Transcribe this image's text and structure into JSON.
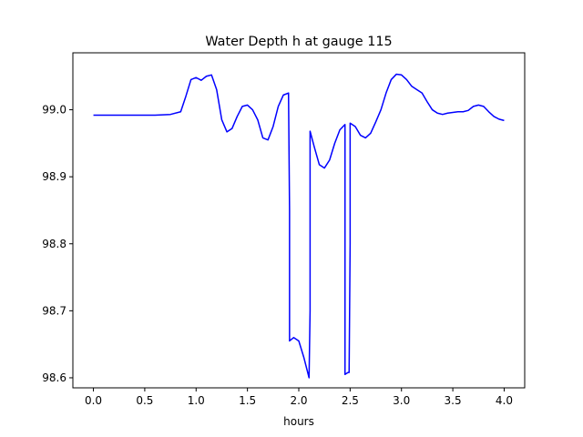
{
  "chart_data": {
    "type": "line",
    "title": "Water Depth h at gauge 115",
    "xlabel": "hours",
    "ylabel": "",
    "xlim": [
      -0.2,
      4.2
    ],
    "ylim": [
      98.585,
      99.085
    ],
    "grid": false,
    "x_ticks": [
      0.0,
      0.5,
      1.0,
      1.5,
      2.0,
      2.5,
      3.0,
      3.5,
      4.0
    ],
    "x_tick_labels": [
      "0.0",
      "0.5",
      "1.0",
      "1.5",
      "2.0",
      "2.5",
      "3.0",
      "3.5",
      "4.0"
    ],
    "y_ticks": [
      98.6,
      98.7,
      98.8,
      98.9,
      99.0
    ],
    "y_tick_labels": [
      "98.6",
      "98.7",
      "98.8",
      "98.9",
      "99.0"
    ],
    "colors": {
      "line": "#0000ff",
      "axes": "#000000",
      "background": "#ffffff"
    },
    "series": [
      {
        "x": [
          0.0,
          0.3,
          0.6,
          0.75,
          0.85,
          0.9,
          0.95,
          1.0,
          1.05,
          1.1,
          1.15,
          1.2,
          1.25,
          1.3,
          1.35,
          1.4,
          1.45,
          1.5,
          1.55,
          1.6,
          1.65,
          1.7,
          1.75,
          1.8,
          1.85,
          1.9,
          1.91,
          1.91,
          1.95,
          2.0,
          2.05,
          2.1,
          2.11,
          2.11,
          2.15,
          2.2,
          2.25,
          2.3,
          2.35,
          2.4,
          2.45,
          2.45,
          2.48,
          2.49,
          2.5,
          2.5,
          2.55,
          2.6,
          2.65,
          2.7,
          2.75,
          2.8,
          2.85,
          2.9,
          2.95,
          3.0,
          3.05,
          3.1,
          3.15,
          3.2,
          3.25,
          3.3,
          3.35,
          3.4,
          3.45,
          3.5,
          3.55,
          3.6,
          3.65,
          3.7,
          3.75,
          3.8,
          3.85,
          3.9,
          3.95,
          4.0
        ],
        "values": [
          98.992,
          98.992,
          98.992,
          98.993,
          98.997,
          99.02,
          99.045,
          99.048,
          99.044,
          99.05,
          99.052,
          99.03,
          98.985,
          98.967,
          98.972,
          98.99,
          99.005,
          99.007,
          99.0,
          98.985,
          98.958,
          98.955,
          98.975,
          99.005,
          99.022,
          99.025,
          98.85,
          98.655,
          98.66,
          98.655,
          98.63,
          98.6,
          98.7,
          98.968,
          98.945,
          98.918,
          98.913,
          98.925,
          98.95,
          98.97,
          98.978,
          98.605,
          98.608,
          98.608,
          98.8,
          98.98,
          98.975,
          98.962,
          98.958,
          98.965,
          98.982,
          99.0,
          99.025,
          99.045,
          99.053,
          99.052,
          99.045,
          99.035,
          99.03,
          99.025,
          99.012,
          99.0,
          98.995,
          98.993,
          98.995,
          98.996,
          98.997,
          98.997,
          98.999,
          99.005,
          99.007,
          99.005,
          98.997,
          98.99,
          98.986,
          98.984
        ]
      }
    ]
  }
}
